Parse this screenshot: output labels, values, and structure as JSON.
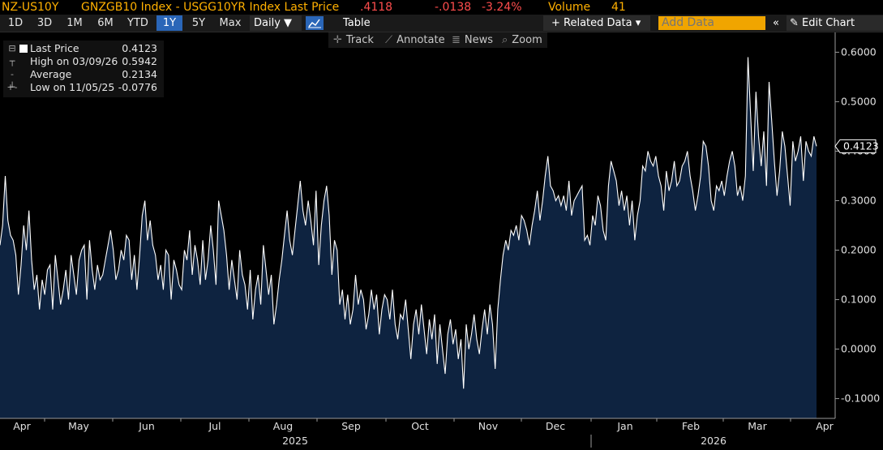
{
  "header": {
    "ticker": "NZ-US10Y",
    "description": "GNZGB10 Index - USGG10YR Index Last Price",
    "last": ".4118",
    "change": "-.0138",
    "pct_change": "-3.24%",
    "volume_label": "Volume",
    "volume": "41"
  },
  "toolbar": {
    "ranges": [
      "1D",
      "3D",
      "1M",
      "6M",
      "YTD",
      "1Y",
      "5Y",
      "Max"
    ],
    "active_range": "1Y",
    "frequency": "Daily ▼",
    "table_label": "Table",
    "related_data": "+ Related Data ▾",
    "add_data_placeholder": "Add Data",
    "collapse_label": "«",
    "edit_chart": "✎ Edit Chart"
  },
  "subtoolbar": {
    "track": "Track",
    "annotate": "Annotate",
    "news": "News",
    "zoom": "Zoom"
  },
  "legend": {
    "last_label": "Last Price",
    "last_value": "0.4123",
    "high_label": "High on 03/09/26",
    "high_value": "0.5942",
    "avg_label": "Average",
    "avg_value": "0.2134",
    "low_label": "Low on 11/05/25",
    "low_value": "-0.0776"
  },
  "colors": {
    "line": "#ffffff",
    "area": "#0e2340",
    "header_orange": "#ffb000",
    "header_red": "#ff4d4d",
    "active_blue": "#2a66b8"
  },
  "chart_data": {
    "type": "area",
    "ylim": [
      -0.14,
      0.64
    ],
    "yticks": [
      -0.1,
      0.0,
      0.1,
      0.2,
      0.3,
      0.4,
      0.5,
      0.6
    ],
    "ytick_labels": [
      "-0.1000",
      "0.0000",
      "0.1000",
      "0.2000",
      "0.3000",
      "0.4000",
      "0.5000",
      "0.6000"
    ],
    "last_value_label": "0.4123",
    "months": [
      "Apr",
      "May",
      "Jun",
      "Jul",
      "Aug",
      "Sep",
      "Oct",
      "Nov",
      "Dec",
      "Jan",
      "Feb",
      "Mar",
      "Apr"
    ],
    "years": [
      "2025",
      "2026"
    ],
    "grid": false,
    "values": [
      0.21,
      0.25,
      0.35,
      0.26,
      0.23,
      0.22,
      0.19,
      0.11,
      0.17,
      0.25,
      0.2,
      0.28,
      0.18,
      0.12,
      0.15,
      0.08,
      0.14,
      0.11,
      0.16,
      0.17,
      0.08,
      0.19,
      0.14,
      0.09,
      0.12,
      0.16,
      0.1,
      0.19,
      0.15,
      0.11,
      0.18,
      0.2,
      0.21,
      0.1,
      0.22,
      0.16,
      0.12,
      0.17,
      0.14,
      0.15,
      0.18,
      0.21,
      0.24,
      0.2,
      0.14,
      0.16,
      0.2,
      0.18,
      0.23,
      0.22,
      0.14,
      0.19,
      0.12,
      0.19,
      0.27,
      0.3,
      0.22,
      0.26,
      0.21,
      0.19,
      0.14,
      0.17,
      0.12,
      0.2,
      0.19,
      0.1,
      0.18,
      0.16,
      0.13,
      0.12,
      0.2,
      0.18,
      0.24,
      0.15,
      0.21,
      0.18,
      0.13,
      0.22,
      0.14,
      0.18,
      0.25,
      0.2,
      0.13,
      0.3,
      0.27,
      0.24,
      0.19,
      0.12,
      0.18,
      0.14,
      0.1,
      0.2,
      0.15,
      0.13,
      0.08,
      0.16,
      0.06,
      0.12,
      0.15,
      0.09,
      0.21,
      0.16,
      0.11,
      0.15,
      0.05,
      0.09,
      0.14,
      0.18,
      0.23,
      0.28,
      0.22,
      0.19,
      0.24,
      0.29,
      0.34,
      0.28,
      0.25,
      0.3,
      0.26,
      0.21,
      0.32,
      0.17,
      0.25,
      0.3,
      0.33,
      0.27,
      0.15,
      0.22,
      0.2,
      0.09,
      0.12,
      0.06,
      0.11,
      0.05,
      0.08,
      0.15,
      0.09,
      0.12,
      0.1,
      0.04,
      0.07,
      0.12,
      0.08,
      0.11,
      0.03,
      0.08,
      0.11,
      0.1,
      0.06,
      0.12,
      0.05,
      0.02,
      0.07,
      0.06,
      0.1,
      0.04,
      -0.02,
      0.05,
      0.08,
      0.03,
      0.09,
      0.04,
      -0.01,
      0.06,
      0.02,
      0.07,
      -0.03,
      0.05,
      0.0,
      -0.05,
      0.03,
      0.06,
      0.01,
      0.04,
      -0.02,
      0.02,
      -0.08,
      0.05,
      0.0,
      0.03,
      0.07,
      0.02,
      -0.01,
      0.04,
      0.08,
      0.03,
      0.09,
      0.05,
      -0.04,
      0.08,
      0.14,
      0.19,
      0.22,
      0.2,
      0.24,
      0.23,
      0.25,
      0.22,
      0.27,
      0.26,
      0.24,
      0.21,
      0.25,
      0.28,
      0.32,
      0.26,
      0.3,
      0.35,
      0.39,
      0.33,
      0.32,
      0.3,
      0.31,
      0.29,
      0.31,
      0.28,
      0.34,
      0.27,
      0.3,
      0.31,
      0.32,
      0.33,
      0.22,
      0.23,
      0.21,
      0.27,
      0.25,
      0.31,
      0.29,
      0.24,
      0.22,
      0.33,
      0.38,
      0.36,
      0.34,
      0.29,
      0.32,
      0.28,
      0.31,
      0.25,
      0.3,
      0.22,
      0.27,
      0.3,
      0.37,
      0.36,
      0.4,
      0.38,
      0.37,
      0.39,
      0.35,
      0.33,
      0.28,
      0.36,
      0.32,
      0.34,
      0.38,
      0.33,
      0.34,
      0.37,
      0.38,
      0.4,
      0.35,
      0.32,
      0.28,
      0.31,
      0.35,
      0.42,
      0.41,
      0.37,
      0.3,
      0.28,
      0.33,
      0.32,
      0.34,
      0.31,
      0.35,
      0.38,
      0.4,
      0.37,
      0.31,
      0.33,
      0.3,
      0.35,
      0.59,
      0.47,
      0.36,
      0.52,
      0.43,
      0.37,
      0.44,
      0.33,
      0.54,
      0.46,
      0.38,
      0.31,
      0.36,
      0.44,
      0.41,
      0.35,
      0.29,
      0.42,
      0.38,
      0.4,
      0.43,
      0.34,
      0.42,
      0.4,
      0.39,
      0.43,
      0.41
    ]
  }
}
